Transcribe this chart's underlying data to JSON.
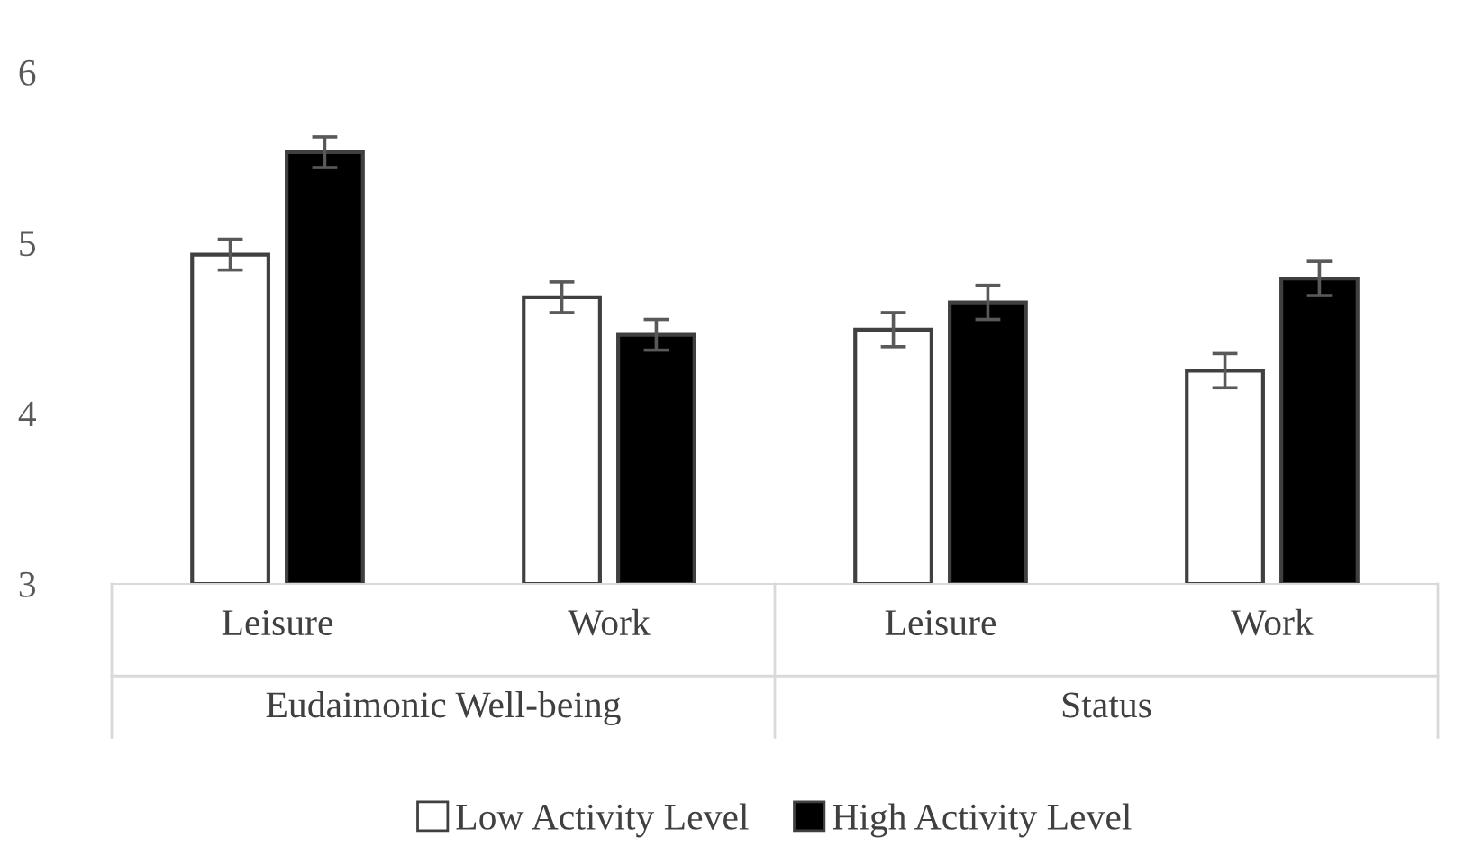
{
  "chart_data": {
    "type": "bar",
    "categories": [
      "Leisure",
      "Work",
      "Leisure",
      "Work"
    ],
    "annotations": [
      "Eudaimonic Well-being",
      "Status"
    ],
    "series": [
      {
        "name": "Low Activity Level",
        "color": "#ffffff",
        "values": [
          4.93,
          4.68,
          4.49,
          4.25
        ],
        "errors": [
          0.09,
          0.09,
          0.1,
          0.1
        ]
      },
      {
        "name": "High Activity Level",
        "color": "#000000",
        "values": [
          5.53,
          4.46,
          4.65,
          4.79
        ],
        "errors": [
          0.09,
          0.09,
          0.1,
          0.1
        ]
      }
    ],
    "ylim": [
      3,
      6
    ],
    "yticks": [
      3,
      4,
      5,
      6
    ],
    "grid": false,
    "legend": "bottom"
  }
}
